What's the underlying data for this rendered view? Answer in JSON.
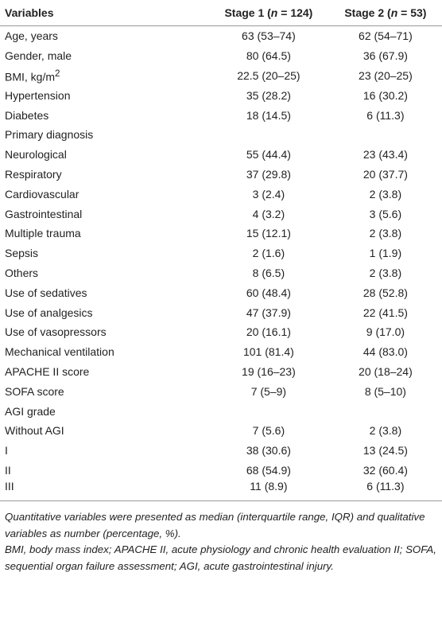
{
  "header": {
    "variables": "Variables",
    "stage1": {
      "pre": "Stage 1 (",
      "n": "n",
      "post": " = 124)"
    },
    "stage2": {
      "pre": "Stage 2 (",
      "n": "n",
      "post": " = 53)"
    }
  },
  "rows": [
    {
      "label": "Age, years",
      "stage1": "63 (53–74)",
      "stage2": "62 (54–71)"
    },
    {
      "label": "Gender, male",
      "stage1": "80 (64.5)",
      "stage2": "36 (67.9)"
    },
    {
      "label": "BMI, kg/m",
      "label_sup": "2",
      "stage1": "22.5 (20–25)",
      "stage2": "23 (20–25)"
    },
    {
      "label": "Hypertension",
      "stage1": "35 (28.2)",
      "stage2": "16 (30.2)"
    },
    {
      "label": "Diabetes",
      "stage1": "18 (14.5)",
      "stage2": "6 (11.3)"
    },
    {
      "label": "Primary diagnosis"
    },
    {
      "label": "Neurological",
      "stage1": "55 (44.4)",
      "stage2": "23 (43.4)"
    },
    {
      "label": "Respiratory",
      "stage1": "37 (29.8)",
      "stage2": "20 (37.7)"
    },
    {
      "label": "Cardiovascular",
      "stage1": "3 (2.4)",
      "stage2": "2 (3.8)"
    },
    {
      "label": "Gastrointestinal",
      "stage1": "4 (3.2)",
      "stage2": "3 (5.6)"
    },
    {
      "label": "Multiple trauma",
      "stage1": "15 (12.1)",
      "stage2": "2 (3.8)"
    },
    {
      "label": "Sepsis",
      "stage1": "2 (1.6)",
      "stage2": "1 (1.9)"
    },
    {
      "label": "Others",
      "stage1": "8 (6.5)",
      "stage2": "2 (3.8)"
    },
    {
      "label": "Use of sedatives",
      "stage1": "60 (48.4)",
      "stage2": "28 (52.8)"
    },
    {
      "label": "Use of analgesics",
      "stage1": "47 (37.9)",
      "stage2": "22 (41.5)"
    },
    {
      "label": "Use of vasopressors",
      "stage1": "20 (16.1)",
      "stage2": "9 (17.0)"
    },
    {
      "label": "Mechanical ventilation",
      "stage1": "101 (81.4)",
      "stage2": "44 (83.0)"
    },
    {
      "label": "APACHE II score",
      "stage1": "19 (16–23)",
      "stage2": "20 (18–24)"
    },
    {
      "label": "SOFA score",
      "stage1": "7 (5–9)",
      "stage2": "8 (5–10)"
    },
    {
      "label": "AGI grade"
    },
    {
      "label": "Without AGI",
      "stage1": "7 (5.6)",
      "stage2": "2 (3.8)"
    },
    {
      "label": "I",
      "stage1": "38 (30.6)",
      "stage2": "13 (24.5)"
    },
    {
      "label": "II",
      "stage1": "68 (54.9)",
      "stage2": "32 (60.4)"
    },
    {
      "label": "III",
      "stage1": "11 (8.9)",
      "stage2": "6 (11.3)"
    }
  ],
  "footnotes": [
    "Quantitative variables were presented as median (interquartile range, IQR) and qualitative variables as number (percentage, %).",
    "BMI, body mass index; APACHE II, acute physiology and chronic health evaluation II; SOFA, sequential organ failure assessment; AGI, acute gastrointestinal injury."
  ]
}
